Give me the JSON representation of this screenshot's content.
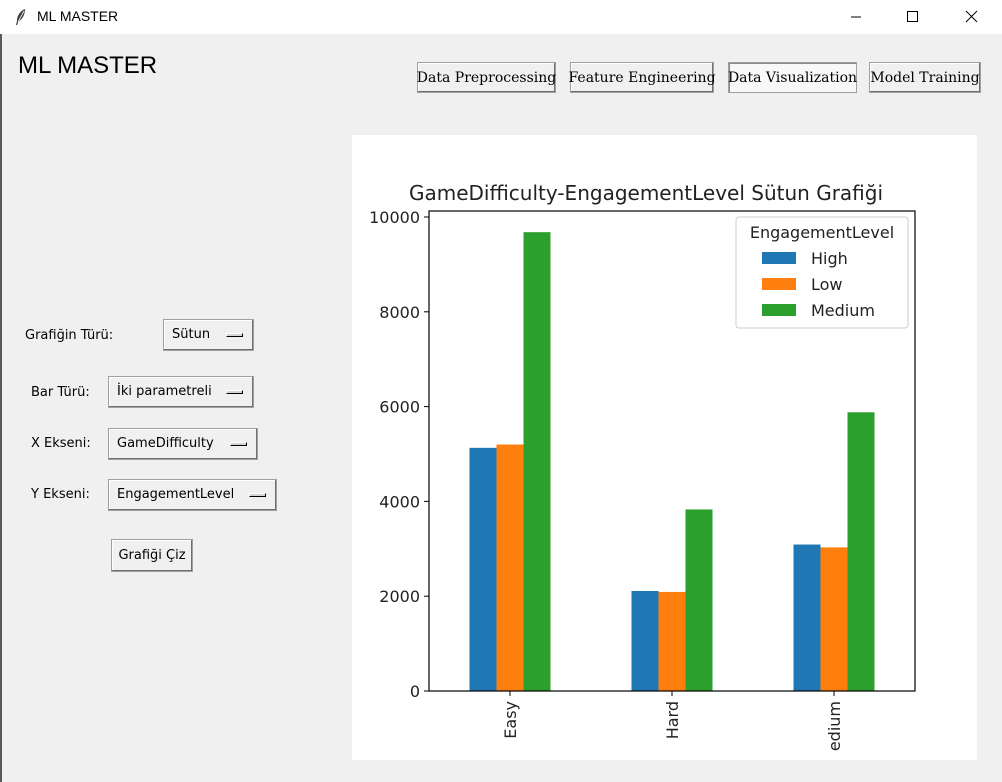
{
  "window": {
    "title": "ML MASTER",
    "icon": "feather-icon",
    "controls": [
      "minimize-icon",
      "maximize-icon",
      "close-icon"
    ]
  },
  "header": {
    "app_title": "ML MASTER",
    "nav": [
      {
        "label": "Data Preprocessing",
        "active": false
      },
      {
        "label": "Feature Engineering",
        "active": false
      },
      {
        "label": "Data Visualization",
        "active": true
      },
      {
        "label": "Model Training",
        "active": false
      }
    ]
  },
  "form": {
    "chart_type": {
      "label": "Grafiğin Türü:",
      "value": "Sütun"
    },
    "bar_type": {
      "label": "Bar Türü:",
      "value": "İki parametreli"
    },
    "x_axis": {
      "label": "X Ekseni:",
      "value": "GameDifficulty"
    },
    "y_axis": {
      "label": "Y Ekseni:",
      "value": "EngagementLevel"
    },
    "draw_button": "Grafiği Çiz"
  },
  "chart_data": {
    "type": "bar",
    "title": "GameDifficulty-EngagementLevel Sütun Grafiği",
    "xlabel": "",
    "ylabel": "",
    "categories": [
      "Easy",
      "Hard",
      "edium"
    ],
    "series": [
      {
        "name": "High",
        "color": "#1f77b4",
        "values": [
          5130,
          2110,
          3090
        ]
      },
      {
        "name": "Low",
        "color": "#ff7f0e",
        "values": [
          5200,
          2090,
          3030
        ]
      },
      {
        "name": "Medium",
        "color": "#2ca02c",
        "values": [
          9680,
          3830,
          5880
        ]
      }
    ],
    "ylim": [
      0,
      10000
    ],
    "yticks": [
      0,
      2000,
      4000,
      6000,
      8000,
      10000
    ],
    "legend": {
      "title": "EngagementLevel",
      "position": "upper-right"
    },
    "grid": false
  }
}
